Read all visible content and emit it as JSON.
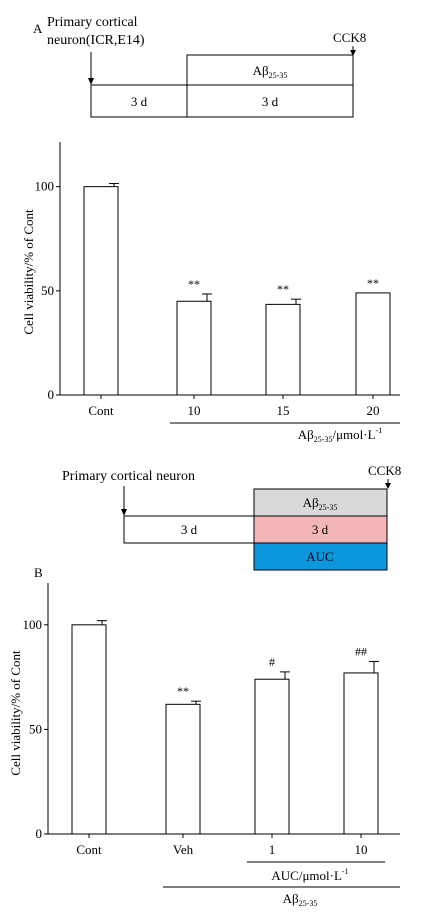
{
  "panel_a": {
    "label": "A",
    "source_line1": "Primary cortical",
    "source_line2": "neuron(ICR,E14)",
    "endpoint": "CCK8",
    "treatment": {
      "base": "Aβ",
      "sub": "25-35"
    },
    "culture_duration": "3 d",
    "treatment_duration": "3 d"
  },
  "panel_b": {
    "label": "B",
    "source": "Primary cortical neuron",
    "endpoint": "CCK8",
    "treatment": {
      "base": "Aβ",
      "sub": "25-35"
    },
    "culture_duration": "3 d",
    "treatment_duration": "3 d",
    "drug": "AUC",
    "colors": {
      "abeta_box": "#d9d9d9",
      "duration_box": "#f4b6b6",
      "drug_box": "#0b97dc"
    }
  },
  "chart_data": [
    {
      "type": "bar",
      "ylabel": "Cell viability/% of Cont",
      "ylim": [
        0,
        120
      ],
      "yticks": [
        0,
        50,
        100
      ],
      "categories": [
        "Cont",
        "10",
        "15",
        "20"
      ],
      "values": [
        100,
        45,
        43.5,
        49
      ],
      "errors": [
        1.5,
        3.5,
        2.5,
        0
      ],
      "significance": [
        "",
        "**",
        "**",
        "**"
      ],
      "group_label": {
        "base": "Aβ",
        "sub": "25-35",
        "suffix": "/μmol·L",
        "sup": "-1"
      }
    },
    {
      "type": "bar",
      "ylabel": "Cell viability/% of Cont",
      "ylim": [
        0,
        120
      ],
      "yticks": [
        0,
        50,
        100
      ],
      "categories": [
        "Cont",
        "Veh",
        "1",
        "10"
      ],
      "values": [
        100,
        62,
        74,
        77
      ],
      "errors": [
        2,
        1.5,
        3.5,
        5.5
      ],
      "significance": [
        "",
        "**",
        "#",
        "##"
      ],
      "dose_label": {
        "base": "AUC/μmol·L",
        "sup": "-1"
      },
      "group_label": {
        "base": "Aβ",
        "sub": "25-35"
      }
    }
  ]
}
